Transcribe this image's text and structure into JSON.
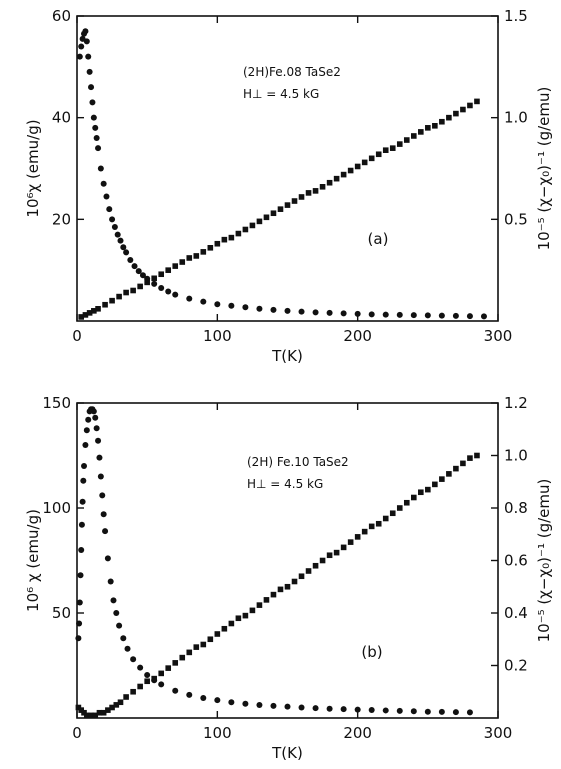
{
  "chart_data": [
    {
      "id": "a",
      "type": "scatter",
      "panel_label": "(a)",
      "annotation_lines": [
        "(2H)Fe.08 TaSe2",
        "H⊥ = 4.5 kG"
      ],
      "xlabel": "T(K)",
      "ylabel_left": "10⁶χ (emu/g)",
      "ylabel_right": "10⁻⁵ (χ−χ₀)⁻¹ (g/emu)",
      "xlim": [
        0,
        300
      ],
      "ylim_left": [
        0,
        60
      ],
      "ylim_right": [
        0,
        1.5
      ],
      "x_ticks": [
        0,
        100,
        200,
        300
      ],
      "x_tick_labels": [
        "0",
        "100",
        "200",
        "300"
      ],
      "y_ticks_left": [
        20,
        40,
        60
      ],
      "y_tick_labels_left": [
        "20",
        "40",
        "60"
      ],
      "y_ticks_right": [
        0.5,
        1.0,
        1.5
      ],
      "y_tick_labels_right": [
        "0.5",
        "1.0",
        "1.5"
      ],
      "series": [
        {
          "axis": "left",
          "marker": "circle",
          "x": [
            2,
            3,
            4,
            5,
            6,
            7,
            8,
            9,
            10,
            11,
            12,
            13,
            14,
            15,
            17,
            19,
            21,
            23,
            25,
            27,
            29,
            31,
            33,
            35,
            38,
            41,
            44,
            47,
            50,
            55,
            60,
            65,
            70,
            80,
            90,
            100,
            110,
            120,
            130,
            140,
            150,
            160,
            170,
            180,
            190,
            200,
            210,
            220,
            230,
            240,
            250,
            260,
            270,
            280,
            290
          ],
          "y": [
            52,
            54,
            55.5,
            56.5,
            57,
            55,
            52,
            49,
            46,
            43,
            40,
            38,
            36,
            34,
            30,
            27,
            24.5,
            22,
            20,
            18.5,
            17,
            15.8,
            14.5,
            13.5,
            12,
            10.8,
            9.8,
            9,
            8.3,
            7.3,
            6.5,
            5.8,
            5.2,
            4.4,
            3.8,
            3.3,
            3,
            2.7,
            2.4,
            2.2,
            2,
            1.85,
            1.7,
            1.6,
            1.5,
            1.4,
            1.3,
            1.25,
            1.2,
            1.15,
            1.1,
            1.05,
            1,
            0.95,
            0.9
          ]
        },
        {
          "axis": "right",
          "marker": "square",
          "x": [
            3,
            6,
            9,
            12,
            15,
            20,
            25,
            30,
            35,
            40,
            45,
            50,
            55,
            60,
            65,
            70,
            75,
            80,
            85,
            90,
            95,
            100,
            105,
            110,
            115,
            120,
            125,
            130,
            135,
            140,
            145,
            150,
            155,
            160,
            165,
            170,
            175,
            180,
            185,
            190,
            195,
            200,
            205,
            210,
            215,
            220,
            225,
            230,
            235,
            240,
            245,
            250,
            255,
            260,
            265,
            270,
            275,
            280,
            285
          ],
          "y": [
            0.02,
            0.03,
            0.04,
            0.05,
            0.06,
            0.08,
            0.1,
            0.12,
            0.14,
            0.15,
            0.17,
            0.19,
            0.21,
            0.23,
            0.25,
            0.27,
            0.29,
            0.31,
            0.32,
            0.34,
            0.36,
            0.38,
            0.4,
            0.41,
            0.43,
            0.45,
            0.47,
            0.49,
            0.51,
            0.53,
            0.55,
            0.57,
            0.59,
            0.61,
            0.63,
            0.64,
            0.66,
            0.68,
            0.7,
            0.72,
            0.74,
            0.76,
            0.78,
            0.8,
            0.82,
            0.84,
            0.85,
            0.87,
            0.89,
            0.91,
            0.93,
            0.95,
            0.96,
            0.98,
            1.0,
            1.02,
            1.04,
            1.06,
            1.08
          ]
        }
      ]
    },
    {
      "id": "b",
      "type": "scatter",
      "panel_label": "(b)",
      "annotation_lines": [
        "(2H) Fe.10 TaSe2",
        "H⊥ = 4.5 kG"
      ],
      "xlabel": "T(K)",
      "ylabel_left": "10⁶ χ (emu/g)",
      "ylabel_right": "10⁻⁵ (χ−χ₀)⁻¹ (g/emu)",
      "xlim": [
        0,
        300
      ],
      "ylim_left": [
        0,
        150
      ],
      "ylim_right": [
        0,
        1.2
      ],
      "x_ticks": [
        0,
        100,
        200,
        300
      ],
      "x_tick_labels": [
        "0",
        "100",
        "200",
        "300"
      ],
      "y_ticks_left": [
        50,
        100,
        150
      ],
      "y_tick_labels_left": [
        "50",
        "100",
        "150"
      ],
      "y_ticks_right": [
        0.2,
        0.4,
        0.6,
        0.8,
        1.0,
        1.2
      ],
      "y_tick_labels_right": [
        "0.2",
        "0.4",
        "0.6",
        "0.8",
        "1.0",
        "1.2"
      ],
      "series": [
        {
          "axis": "left",
          "marker": "circle",
          "x": [
            1,
            1.5,
            2,
            2.5,
            3,
            3.5,
            4,
            4.5,
            5,
            6,
            7,
            8,
            9,
            10,
            11,
            12,
            13,
            14,
            15,
            16,
            17,
            18,
            19,
            20,
            22,
            24,
            26,
            28,
            30,
            33,
            36,
            40,
            45,
            50,
            55,
            60,
            70,
            80,
            90,
            100,
            110,
            120,
            130,
            140,
            150,
            160,
            170,
            180,
            190,
            200,
            210,
            220,
            230,
            240,
            250,
            260,
            270,
            280
          ],
          "y": [
            38,
            45,
            55,
            68,
            80,
            92,
            103,
            113,
            120,
            130,
            137,
            142,
            146,
            147,
            147,
            146,
            143,
            138,
            132,
            124,
            115,
            106,
            97,
            89,
            76,
            65,
            56,
            50,
            44,
            38,
            33,
            28,
            24,
            20.5,
            18,
            16,
            13,
            11,
            9.5,
            8.5,
            7.5,
            6.8,
            6.2,
            5.8,
            5.4,
            5,
            4.7,
            4.4,
            4.2,
            4,
            3.8,
            3.6,
            3.4,
            3.2,
            3,
            2.9,
            2.8,
            2.7
          ]
        },
        {
          "axis": "right",
          "marker": "square",
          "x": [
            1,
            3,
            5,
            7,
            10,
            13,
            16,
            19,
            22,
            25,
            28,
            31,
            35,
            40,
            45,
            50,
            55,
            60,
            65,
            70,
            75,
            80,
            85,
            90,
            95,
            100,
            105,
            110,
            115,
            120,
            125,
            130,
            135,
            140,
            145,
            150,
            155,
            160,
            165,
            170,
            175,
            180,
            185,
            190,
            195,
            200,
            205,
            210,
            215,
            220,
            225,
            230,
            235,
            240,
            245,
            250,
            255,
            260,
            265,
            270,
            275,
            280,
            285
          ],
          "y": [
            0.04,
            0.03,
            0.02,
            0.01,
            0.01,
            0.01,
            0.02,
            0.02,
            0.03,
            0.04,
            0.05,
            0.06,
            0.08,
            0.1,
            0.12,
            0.14,
            0.15,
            0.17,
            0.19,
            0.21,
            0.23,
            0.25,
            0.27,
            0.28,
            0.3,
            0.32,
            0.34,
            0.36,
            0.38,
            0.39,
            0.41,
            0.43,
            0.45,
            0.47,
            0.49,
            0.5,
            0.52,
            0.54,
            0.56,
            0.58,
            0.6,
            0.62,
            0.63,
            0.65,
            0.67,
            0.69,
            0.71,
            0.73,
            0.74,
            0.76,
            0.78,
            0.8,
            0.82,
            0.84,
            0.86,
            0.87,
            0.89,
            0.91,
            0.93,
            0.95,
            0.97,
            0.99,
            1.0
          ]
        }
      ]
    }
  ]
}
